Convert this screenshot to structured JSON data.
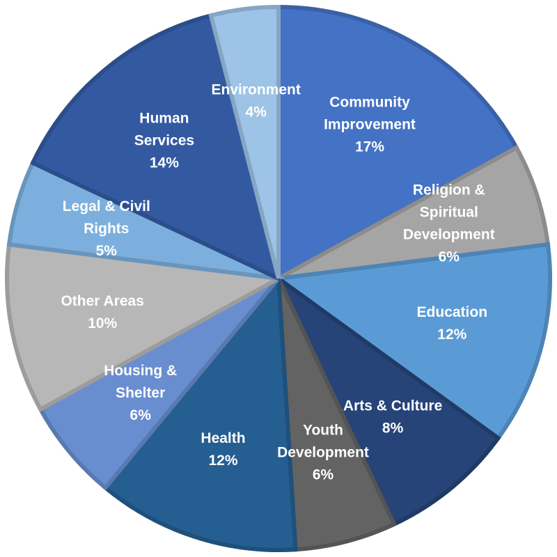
{
  "chart_data": {
    "type": "pie",
    "start_angle_deg": 0,
    "direction": "clockwise",
    "slices": [
      {
        "label_lines": [
          "Community",
          "Improvement"
        ],
        "value": 17,
        "value_label": "17%",
        "color": "#4472C4"
      },
      {
        "label_lines": [
          "Religion &",
          "Spiritual",
          "Development"
        ],
        "value": 6,
        "value_label": "6%",
        "color": "#A5A5A5"
      },
      {
        "label_lines": [
          "Education"
        ],
        "value": 12,
        "value_label": "12%",
        "color": "#5B9BD5"
      },
      {
        "label_lines": [
          "Arts & Culture"
        ],
        "value": 8,
        "value_label": "8%",
        "color": "#264478"
      },
      {
        "label_lines": [
          "Youth",
          "Development"
        ],
        "value": 6,
        "value_label": "6%",
        "color": "#636363"
      },
      {
        "label_lines": [
          "Health"
        ],
        "value": 12,
        "value_label": "12%",
        "color": "#255E91"
      },
      {
        "label_lines": [
          "Housing &",
          "Shelter"
        ],
        "value": 6,
        "value_label": "6%",
        "color": "#698ED0"
      },
      {
        "label_lines": [
          "Other Areas"
        ],
        "value": 10,
        "value_label": "10%",
        "color": "#B7B7B7"
      },
      {
        "label_lines": [
          "Legal & Civil",
          "Rights"
        ],
        "value": 5,
        "value_label": "5%",
        "color": "#7CAFDD"
      },
      {
        "label_lines": [
          "Human",
          "Services"
        ],
        "value": 14,
        "value_label": "14%",
        "color": "#335AA1"
      },
      {
        "label_lines": [
          "Environment"
        ],
        "value": 4,
        "value_label": "4%",
        "color": "#9DC3E6"
      }
    ]
  }
}
